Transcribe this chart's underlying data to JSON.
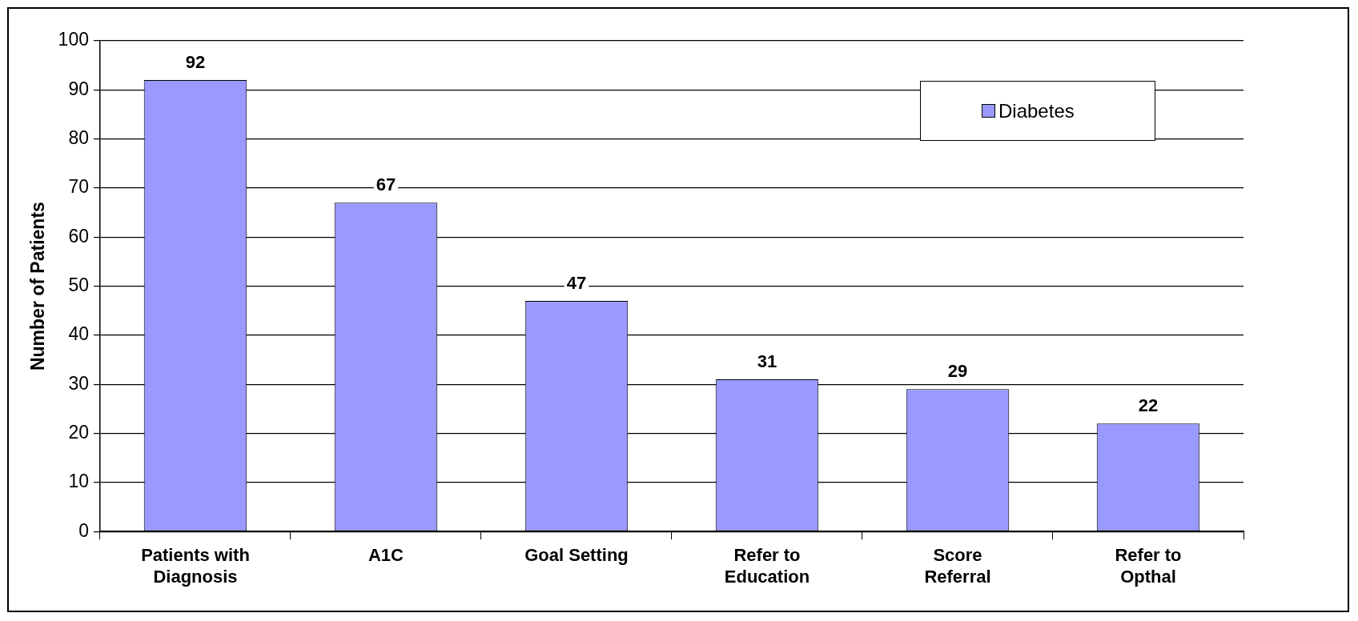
{
  "chart_data": {
    "type": "bar",
    "ylabel": "Number of Patients",
    "categories": [
      "Patients with\nDiagnosis",
      "A1C",
      "Goal Setting",
      "Refer to\nEducation",
      "Score\nReferral",
      "Refer to\nOpthal"
    ],
    "series": [
      {
        "name": "Diabetes",
        "color": "#9999ff",
        "values": [
          92,
          67,
          47,
          31,
          29,
          22
        ]
      }
    ],
    "ylim": [
      0,
      100
    ],
    "yticks": [
      0,
      10,
      20,
      30,
      40,
      50,
      60,
      70,
      80,
      90,
      100
    ],
    "grid": "y",
    "legend": "top right",
    "data_labels": true
  }
}
